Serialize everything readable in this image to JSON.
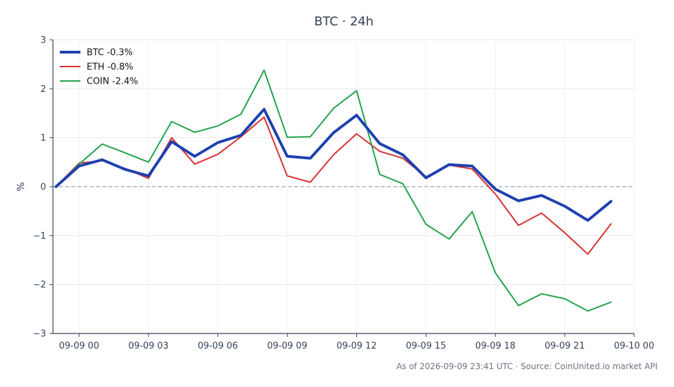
{
  "chart_data": {
    "type": "line",
    "title": "BTC · 24h",
    "xlabel": "",
    "ylabel": "%",
    "ylim": [
      -3,
      3
    ],
    "yticks": [
      -3,
      -2,
      -1,
      0,
      1,
      2,
      3
    ],
    "ytick_labels": [
      "−3",
      "−2",
      "−1",
      "0",
      "1",
      "2",
      "3"
    ],
    "xlim": [
      "2026-09-08 22:52",
      "2026-09-10 00:00"
    ],
    "xticks": [
      {
        "label": "09-09 00",
        "hour": 0
      },
      {
        "label": "09-09 03",
        "hour": 3
      },
      {
        "label": "09-09 06",
        "hour": 6
      },
      {
        "label": "09-09 09",
        "hour": 9
      },
      {
        "label": "09-09 12",
        "hour": 12
      },
      {
        "label": "09-09 15",
        "hour": 15
      },
      {
        "label": "09-09 18",
        "hour": 18
      },
      {
        "label": "09-09 21",
        "hour": 21
      },
      {
        "label": "09-10 00",
        "hour": 24
      }
    ],
    "x_hours": [
      -1,
      0,
      1,
      2,
      3,
      4,
      5,
      6,
      7,
      8,
      9,
      10,
      11,
      12,
      13,
      14,
      15,
      16,
      17,
      18,
      19,
      20,
      21,
      22,
      23
    ],
    "series": [
      {
        "name": "BTC -0.3%",
        "color": "#1e40af",
        "width": 4,
        "values": [
          0.0,
          0.42,
          0.55,
          0.35,
          0.22,
          0.92,
          0.62,
          0.9,
          1.05,
          1.58,
          0.62,
          0.58,
          1.1,
          1.46,
          0.88,
          0.65,
          0.18,
          0.45,
          0.42,
          -0.05,
          -0.29,
          -0.18,
          -0.4,
          -0.69,
          -0.3
        ]
      },
      {
        "name": "ETH -0.8%",
        "color": "#d62f2f",
        "width": 2,
        "values": [
          0.0,
          0.48,
          0.53,
          0.37,
          0.17,
          1.0,
          0.46,
          0.66,
          1.02,
          1.42,
          0.22,
          0.09,
          0.65,
          1.08,
          0.72,
          0.58,
          0.2,
          0.44,
          0.36,
          -0.15,
          -0.79,
          -0.54,
          -0.94,
          -1.38,
          -0.76
        ]
      },
      {
        "name": "COIN -2.4%",
        "color": "#22a24a",
        "width": 2,
        "values": [
          0.0,
          0.46,
          0.87,
          0.69,
          0.5,
          1.33,
          1.11,
          1.24,
          1.48,
          2.38,
          1.01,
          1.02,
          1.6,
          1.96,
          0.25,
          0.06,
          -0.77,
          -1.07,
          -0.51,
          -1.76,
          -2.43,
          -2.19,
          -2.29,
          -2.54,
          -2.36
        ]
      }
    ],
    "zero_line": true,
    "grid": true,
    "legend_position": "top-left"
  },
  "footer": {
    "text": "As of 2026-09-09 23:41 UTC · Source: CoinUnited.io market API"
  }
}
